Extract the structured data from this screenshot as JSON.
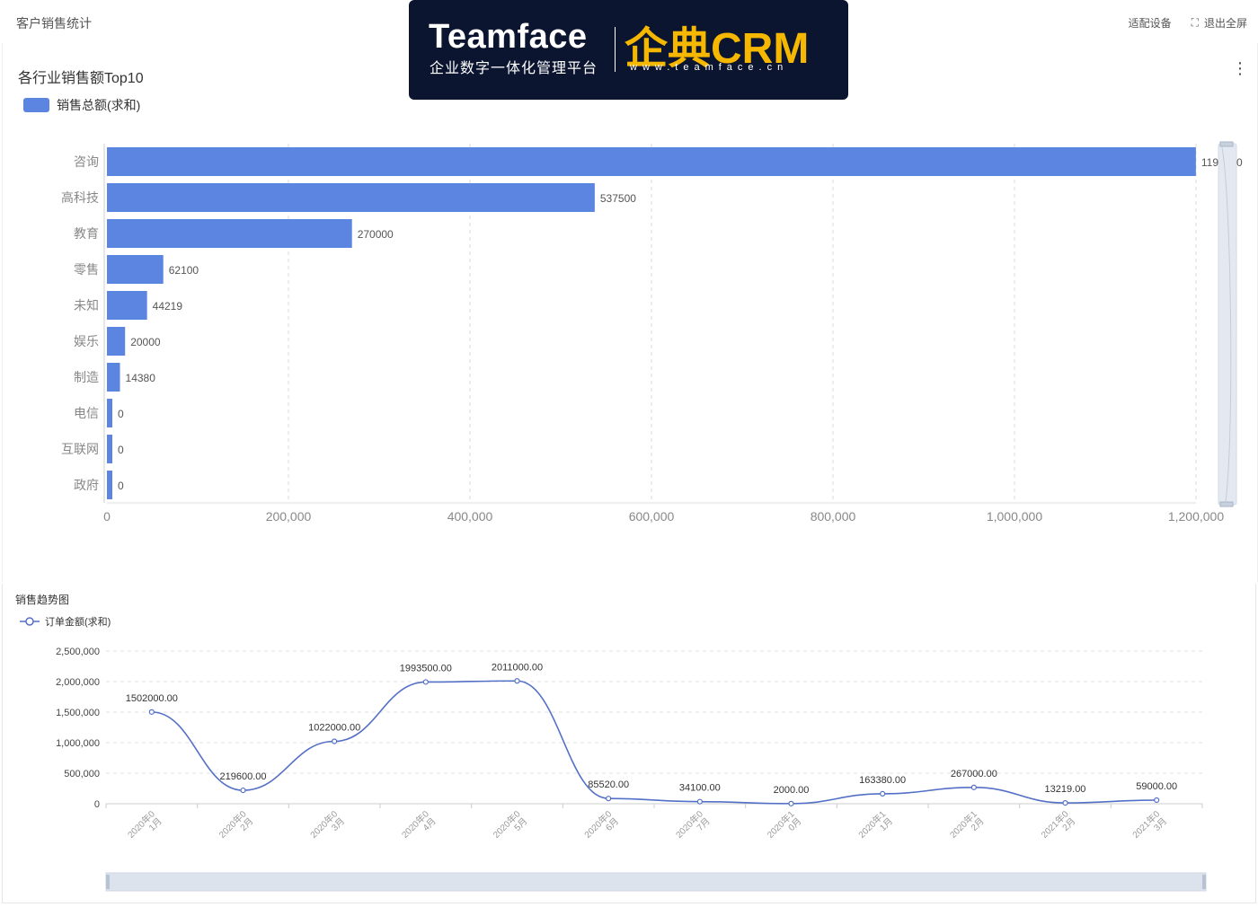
{
  "header": {
    "title": "客户销售统计",
    "actions": [
      {
        "label": "适配设备",
        "icon": ""
      },
      {
        "label": "退出全屏",
        "icon": "fullscreen-exit-icon"
      }
    ]
  },
  "logo": {
    "brand": "Teamface",
    "tagline": "企业数字一体化管理平台",
    "product": "企典CRM",
    "url": "www.teamface.cn",
    "bg_color": "#0c1530",
    "accent_color": "#f5b700"
  },
  "chart_data": [
    {
      "type": "bar",
      "orientation": "horizontal",
      "title": "各行业销售额Top10",
      "categories": [
        "咨询",
        "高科技",
        "教育",
        "零售",
        "未知",
        "娱乐",
        "制造",
        "电信",
        "互联网",
        "政府"
      ],
      "series": [
        {
          "name": "销售总额(求和)",
          "values": [
            1199900,
            537500,
            270000,
            62100,
            44219,
            20000,
            14380,
            0,
            0,
            0
          ],
          "labels": [
            "1199900",
            "537500",
            "270000",
            "62100",
            "44219",
            "20000",
            "14380",
            "0",
            "0",
            "0"
          ],
          "color": "#5b85e0"
        }
      ],
      "xlim": [
        0,
        1200000
      ],
      "xticks": [
        "0",
        "200,000",
        "400,000",
        "600,000",
        "800,000",
        "1,000,000",
        "1,200,000"
      ],
      "grid": true,
      "legend_position": "top-left",
      "zoom_slider": "right"
    },
    {
      "type": "line",
      "smooth": true,
      "title": "销售趋势图",
      "categories": [
        "2020年01月",
        "2020年02月",
        "2020年03月",
        "2020年04月",
        "2020年05月",
        "2020年06月",
        "2020年07月",
        "2020年10月",
        "2020年11月",
        "2020年12月",
        "2021年02月",
        "2021年03月"
      ],
      "series": [
        {
          "name": "订单金额(求和)",
          "values": [
            1502000,
            219600,
            1022000,
            1993500,
            2011000,
            85520,
            34100,
            2000,
            163380,
            267000,
            13219,
            59000
          ],
          "labels": [
            "1502000.00",
            "219600.00",
            "1022000.00",
            "1993500.00",
            "2011000.00",
            "85520.00",
            "34100.00",
            "2000.00",
            "163380.00",
            "267000.00",
            "13219.00",
            "59000.00"
          ],
          "color": "#5470c6"
        }
      ],
      "ylim": [
        0,
        2500000
      ],
      "yticks": [
        "0",
        "500,000",
        "1,000,000",
        "1,500,000",
        "2,000,000",
        "2,500,000"
      ],
      "grid": true,
      "legend_position": "top-left",
      "zoom_slider": "bottom"
    }
  ]
}
